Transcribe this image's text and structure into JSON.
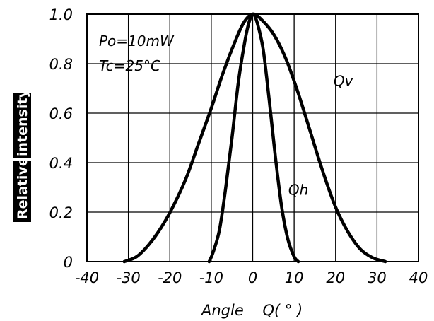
{
  "chart_data": {
    "type": "line",
    "title": "",
    "xlabel": "Angle    Q( ° )",
    "ylabel_parts": [
      "Relative",
      "intensity"
    ],
    "xlim": [
      -40,
      40
    ],
    "ylim": [
      0,
      1.0
    ],
    "x_ticks": [
      -40,
      -30,
      -20,
      -10,
      0,
      10,
      20,
      30,
      40
    ],
    "y_ticks": [
      {
        "value": 0,
        "label": "0"
      },
      {
        "value": 0.2,
        "label": "0.2"
      },
      {
        "value": 0.4,
        "label": "0.4"
      },
      {
        "value": 0.6,
        "label": "0.6"
      },
      {
        "value": 0.8,
        "label": "0.8"
      },
      {
        "value": 1.0,
        "label": "1.0"
      }
    ],
    "grid": true,
    "annotations": [
      "Po=10mW",
      "Tc=25°C"
    ],
    "series": [
      {
        "name": "Qv",
        "label_at": {
          "x": 19.5,
          "y": 0.71
        },
        "points": [
          [
            -31,
            0
          ],
          [
            -28,
            0.02
          ],
          [
            -25,
            0.07
          ],
          [
            -22,
            0.14
          ],
          [
            -19,
            0.23
          ],
          [
            -16,
            0.34
          ],
          [
            -13,
            0.48
          ],
          [
            -10,
            0.62
          ],
          [
            -7,
            0.77
          ],
          [
            -4,
            0.9
          ],
          [
            -2,
            0.97
          ],
          [
            0,
            1.0
          ],
          [
            2,
            0.98
          ],
          [
            5,
            0.92
          ],
          [
            8,
            0.82
          ],
          [
            11,
            0.68
          ],
          [
            14,
            0.52
          ],
          [
            17,
            0.36
          ],
          [
            20,
            0.22
          ],
          [
            23,
            0.12
          ],
          [
            26,
            0.05
          ],
          [
            29,
            0.015
          ],
          [
            32,
            0
          ]
        ]
      },
      {
        "name": "Qh",
        "label_at": {
          "x": 8.6,
          "y": 0.27
        },
        "points": [
          [
            -10.5,
            0
          ],
          [
            -9.5,
            0.04
          ],
          [
            -8,
            0.13
          ],
          [
            -6.5,
            0.3
          ],
          [
            -5,
            0.5
          ],
          [
            -3.5,
            0.72
          ],
          [
            -2,
            0.88
          ],
          [
            -1,
            0.96
          ],
          [
            0,
            1.0
          ],
          [
            1,
            0.97
          ],
          [
            2.5,
            0.86
          ],
          [
            4,
            0.65
          ],
          [
            5.5,
            0.42
          ],
          [
            7,
            0.22
          ],
          [
            8.5,
            0.09
          ],
          [
            10,
            0.02
          ],
          [
            11,
            0
          ]
        ]
      }
    ]
  }
}
